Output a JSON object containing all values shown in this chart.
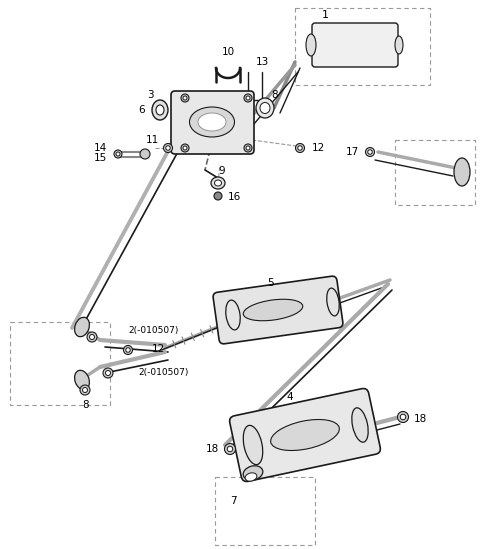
{
  "bg": "#ffffff",
  "lc": "#1a1a1a",
  "dc": "#999999",
  "gray": "#888888",
  "fig_w": 4.8,
  "fig_h": 5.49,
  "dpi": 100
}
